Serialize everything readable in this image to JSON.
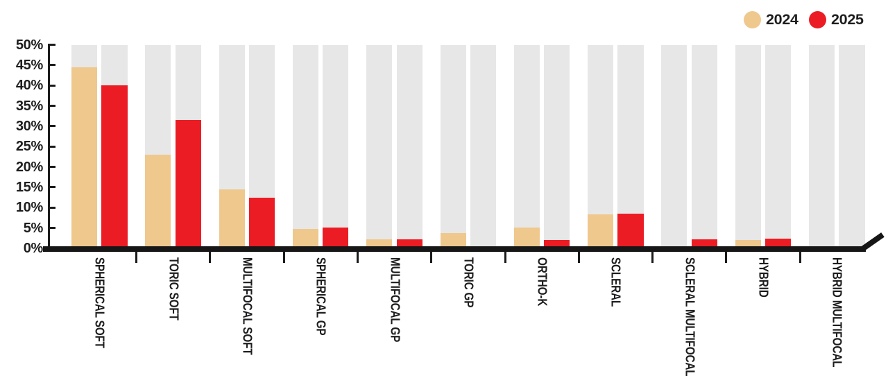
{
  "legend": {
    "items": [
      {
        "label": "2024",
        "color": "#EFC88E"
      },
      {
        "label": "2025",
        "color": "#EB1C24"
      }
    ]
  },
  "chart_data": {
    "type": "bar",
    "title": "",
    "categories": [
      "SPHERICAL SOFT",
      "TORIC SOFT",
      "MULTIFOCAL SOFT",
      "SPHERICAL GP",
      "MULTIFOCAL GP",
      "TORIC GP",
      "ORTHO-K",
      "SCLERAL",
      "SCLERAL MULTIFOCAL",
      "HYBRID",
      "HYBRID MULTIFOCAL"
    ],
    "series": [
      {
        "name": "2024",
        "color": "#EFC88E",
        "values": [
          44.5,
          23,
          14.5,
          4.8,
          2.3,
          3.8,
          5.2,
          8.4,
          0,
          2.1,
          0
        ]
      },
      {
        "name": "2025",
        "color": "#EB1C24",
        "values": [
          40,
          31.5,
          12.5,
          5.2,
          2.3,
          0,
          2.1,
          8.5,
          2.3,
          2.4,
          0
        ]
      }
    ],
    "xlabel": "",
    "ylabel": "",
    "ylim": [
      0,
      50
    ],
    "ytick_step": 5,
    "y_tick_labels": [
      "0%",
      "5%",
      "10%",
      "15%",
      "20%",
      "25%",
      "30%",
      "35%",
      "40%",
      "45%",
      "50%"
    ],
    "grid": false,
    "background_column_color": "#E7E7E7",
    "legend_position": "top-right"
  }
}
